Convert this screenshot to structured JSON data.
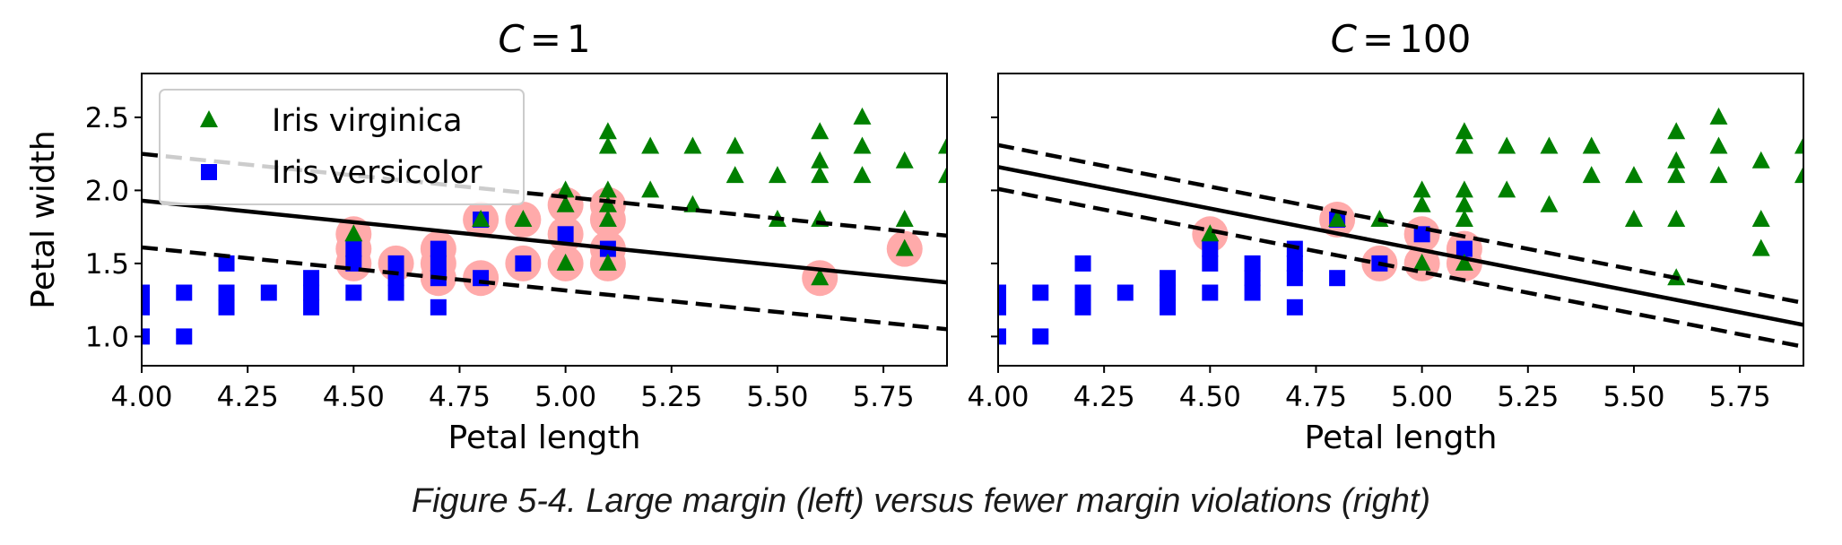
{
  "caption": "Figure 5-4. Large margin (left) versus fewer margin violations (right)",
  "colors": {
    "virginica": "#008000",
    "versicolor": "#0000ff",
    "support_vectors": "#ffaaaa",
    "boundary": "#000000",
    "legend_border": "#cccccc"
  },
  "chart_data": [
    {
      "type": "scatter",
      "title_parts": [
        "C",
        "=",
        "1"
      ],
      "xlabel": "Petal length",
      "ylabel": "Petal width",
      "xlim": [
        4.0,
        5.9
      ],
      "ylim": [
        0.8,
        2.8
      ],
      "xticks": [
        "4.00",
        "4.25",
        "4.50",
        "4.75",
        "5.00",
        "5.25",
        "5.50",
        "5.75"
      ],
      "yticks": [
        "1.0",
        "1.5",
        "2.0",
        "2.5"
      ],
      "grid": false,
      "legend": {
        "placement": "upper-left",
        "entries": [
          {
            "label": "Iris virginica",
            "marker": "triangle"
          },
          {
            "label": "Iris versicolor",
            "marker": "square"
          }
        ]
      },
      "boundary": {
        "decision": [
          [
            4.0,
            1.93
          ],
          [
            5.9,
            1.37
          ]
        ],
        "margin_upper": [
          [
            4.0,
            2.25
          ],
          [
            5.9,
            1.69
          ]
        ],
        "margin_lower": [
          [
            4.0,
            1.61
          ],
          [
            5.9,
            1.05
          ]
        ]
      },
      "support_vectors": [
        [
          4.5,
          1.5
        ],
        [
          4.5,
          1.6
        ],
        [
          4.5,
          1.7
        ],
        [
          4.6,
          1.5
        ],
        [
          4.7,
          1.4
        ],
        [
          4.7,
          1.5
        ],
        [
          4.7,
          1.6
        ],
        [
          4.8,
          1.4
        ],
        [
          4.8,
          1.8
        ],
        [
          4.9,
          1.5
        ],
        [
          4.9,
          1.8
        ],
        [
          5.0,
          1.5
        ],
        [
          5.0,
          1.7
        ],
        [
          5.0,
          1.9
        ],
        [
          5.1,
          1.5
        ],
        [
          5.1,
          1.6
        ],
        [
          5.1,
          1.8
        ],
        [
          5.1,
          1.9
        ],
        [
          5.6,
          1.4
        ],
        [
          5.8,
          1.6
        ]
      ]
    },
    {
      "type": "scatter",
      "title_parts": [
        "C",
        "=",
        "100"
      ],
      "xlabel": "Petal length",
      "ylabel": "",
      "xlim": [
        4.0,
        5.9
      ],
      "ylim": [
        0.8,
        2.8
      ],
      "xticks": [
        "4.00",
        "4.25",
        "4.50",
        "4.75",
        "5.00",
        "5.25",
        "5.50",
        "5.75"
      ],
      "yticks": [],
      "grid": false,
      "boundary": {
        "decision": [
          [
            4.0,
            2.16
          ],
          [
            5.9,
            1.08
          ]
        ],
        "margin_upper": [
          [
            4.0,
            2.31
          ],
          [
            5.9,
            1.23
          ]
        ],
        "margin_lower": [
          [
            4.0,
            2.01
          ],
          [
            5.9,
            0.93
          ]
        ]
      },
      "support_vectors": [
        [
          4.5,
          1.7
        ],
        [
          4.8,
          1.8
        ],
        [
          4.9,
          1.5
        ],
        [
          5.0,
          1.5
        ],
        [
          5.0,
          1.7
        ],
        [
          5.1,
          1.5
        ],
        [
          5.1,
          1.6
        ]
      ]
    }
  ],
  "series": {
    "versicolor": [
      [
        4.0,
        1.0
      ],
      [
        4.0,
        1.3
      ],
      [
        4.0,
        1.2
      ],
      [
        4.1,
        1.0
      ],
      [
        4.1,
        1.3
      ],
      [
        4.2,
        1.2
      ],
      [
        4.2,
        1.3
      ],
      [
        4.2,
        1.5
      ],
      [
        4.3,
        1.3
      ],
      [
        4.4,
        1.2
      ],
      [
        4.4,
        1.3
      ],
      [
        4.4,
        1.4
      ],
      [
        4.5,
        1.3
      ],
      [
        4.5,
        1.5
      ],
      [
        4.5,
        1.6
      ],
      [
        4.6,
        1.3
      ],
      [
        4.6,
        1.4
      ],
      [
        4.6,
        1.5
      ],
      [
        4.7,
        1.2
      ],
      [
        4.7,
        1.4
      ],
      [
        4.7,
        1.5
      ],
      [
        4.7,
        1.6
      ],
      [
        4.8,
        1.4
      ],
      [
        4.8,
        1.8
      ],
      [
        4.9,
        1.5
      ],
      [
        5.0,
        1.7
      ],
      [
        5.1,
        1.6
      ]
    ],
    "virginica": [
      [
        4.5,
        1.7
      ],
      [
        4.8,
        1.8
      ],
      [
        4.9,
        1.8
      ],
      [
        5.0,
        1.5
      ],
      [
        5.0,
        1.9
      ],
      [
        5.0,
        2.0
      ],
      [
        5.1,
        1.5
      ],
      [
        5.1,
        1.8
      ],
      [
        5.1,
        1.9
      ],
      [
        5.1,
        2.0
      ],
      [
        5.1,
        2.3
      ],
      [
        5.1,
        2.4
      ],
      [
        5.2,
        2.0
      ],
      [
        5.2,
        2.3
      ],
      [
        5.3,
        1.9
      ],
      [
        5.3,
        2.3
      ],
      [
        5.4,
        2.1
      ],
      [
        5.4,
        2.3
      ],
      [
        5.5,
        1.8
      ],
      [
        5.5,
        2.1
      ],
      [
        5.6,
        1.4
      ],
      [
        5.6,
        1.8
      ],
      [
        5.6,
        2.1
      ],
      [
        5.6,
        2.2
      ],
      [
        5.6,
        2.4
      ],
      [
        5.7,
        2.1
      ],
      [
        5.7,
        2.3
      ],
      [
        5.7,
        2.5
      ],
      [
        5.8,
        1.6
      ],
      [
        5.8,
        1.8
      ],
      [
        5.8,
        2.2
      ],
      [
        5.9,
        2.1
      ],
      [
        5.9,
        2.3
      ]
    ]
  }
}
